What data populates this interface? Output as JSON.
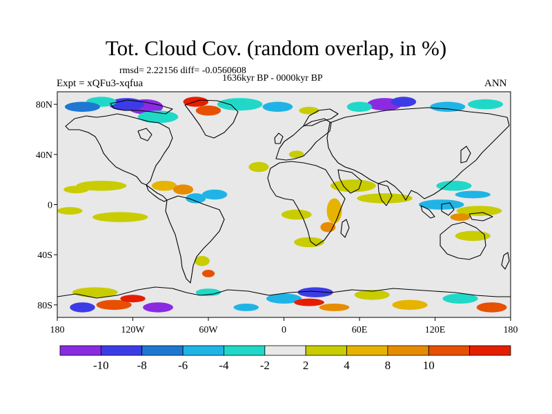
{
  "title": "Tot. Cloud Cov. (random overlap, in %)",
  "stats": "rmsd= 2.22156 diff= -0.0560608",
  "period": "1636kyr BP - 0000kyr BP",
  "experiment": "Expt = xQFu3-xqfua",
  "season": "ANN",
  "map": {
    "lon_range": [
      -180,
      180
    ],
    "lat_range": [
      -90,
      90
    ],
    "background_color": "#e8e8e8",
    "coastline_color": "#000000"
  },
  "lat_ticks": [
    {
      "label": "80N",
      "lat": 80
    },
    {
      "label": "40N",
      "lat": 40
    },
    {
      "label": "0",
      "lat": 0
    },
    {
      "label": "40S",
      "lat": -40
    },
    {
      "label": "80S",
      "lat": -80
    }
  ],
  "lon_ticks": [
    {
      "label": "180",
      "lon": -180
    },
    {
      "label": "120W",
      "lon": -120
    },
    {
      "label": "60W",
      "lon": -60
    },
    {
      "label": "0",
      "lon": 0
    },
    {
      "label": "60E",
      "lon": 60
    },
    {
      "label": "120E",
      "lon": 120
    },
    {
      "label": "180",
      "lon": 180
    }
  ],
  "colorbar": {
    "colors": [
      "#8a2be2",
      "#3c3ce6",
      "#1e78d2",
      "#20b4e6",
      "#20d8c8",
      "#e8e8e8",
      "#c8cc00",
      "#e6b400",
      "#e68c00",
      "#e65000",
      "#e61e00"
    ],
    "labels": [
      "-10",
      "-8",
      "-6",
      "-4",
      "-2",
      "2",
      "4",
      "8",
      "10"
    ]
  },
  "anomalies": [
    {
      "lon": -110,
      "lat": 78,
      "rx": 14,
      "ry": 6,
      "c": 0
    },
    {
      "lon": -125,
      "lat": 80,
      "rx": 14,
      "ry": 5,
      "c": 1
    },
    {
      "lon": -100,
      "lat": 70,
      "rx": 16,
      "ry": 5,
      "c": 4
    },
    {
      "lon": -145,
      "lat": 82,
      "rx": 12,
      "ry": 4,
      "c": 4
    },
    {
      "lon": -160,
      "lat": 78,
      "rx": 14,
      "ry": 4,
      "c": 2
    },
    {
      "lon": -70,
      "lat": 82,
      "rx": 10,
      "ry": 4,
      "c": 10
    },
    {
      "lon": -60,
      "lat": 75,
      "rx": 10,
      "ry": 4,
      "c": 9
    },
    {
      "lon": -35,
      "lat": 80,
      "rx": 18,
      "ry": 5,
      "c": 4
    },
    {
      "lon": -5,
      "lat": 78,
      "rx": 12,
      "ry": 4,
      "c": 3
    },
    {
      "lon": 80,
      "lat": 80,
      "rx": 14,
      "ry": 5,
      "c": 0
    },
    {
      "lon": 95,
      "lat": 82,
      "rx": 10,
      "ry": 4,
      "c": 1
    },
    {
      "lon": 60,
      "lat": 78,
      "rx": 10,
      "ry": 4,
      "c": 4
    },
    {
      "lon": 130,
      "lat": 78,
      "rx": 14,
      "ry": 4,
      "c": 3
    },
    {
      "lon": 160,
      "lat": 80,
      "rx": 14,
      "ry": 4,
      "c": 4
    },
    {
      "lon": 20,
      "lat": 75,
      "rx": 8,
      "ry": 3,
      "c": 6
    },
    {
      "lon": -145,
      "lat": 15,
      "rx": 20,
      "ry": 4,
      "c": 6
    },
    {
      "lon": -165,
      "lat": 12,
      "rx": 10,
      "ry": 3,
      "c": 6
    },
    {
      "lon": -95,
      "lat": 15,
      "rx": 10,
      "ry": 4,
      "c": 7
    },
    {
      "lon": -80,
      "lat": 12,
      "rx": 8,
      "ry": 4,
      "c": 8
    },
    {
      "lon": -55,
      "lat": 8,
      "rx": 10,
      "ry": 4,
      "c": 3
    },
    {
      "lon": -20,
      "lat": 30,
      "rx": 8,
      "ry": 4,
      "c": 6
    },
    {
      "lon": 10,
      "lat": 40,
      "rx": 6,
      "ry": 3,
      "c": 6
    },
    {
      "lon": 55,
      "lat": 15,
      "rx": 18,
      "ry": 5,
      "c": 6
    },
    {
      "lon": 80,
      "lat": 5,
      "rx": 22,
      "ry": 4,
      "c": 6
    },
    {
      "lon": 40,
      "lat": -5,
      "rx": 6,
      "ry": 10,
      "c": 7
    },
    {
      "lon": 35,
      "lat": -18,
      "rx": 6,
      "ry": 4,
      "c": 8
    },
    {
      "lon": 10,
      "lat": -8,
      "rx": 12,
      "ry": 4,
      "c": 6
    },
    {
      "lon": 20,
      "lat": -30,
      "rx": 12,
      "ry": 4,
      "c": 6
    },
    {
      "lon": -130,
      "lat": -10,
      "rx": 22,
      "ry": 4,
      "c": 6
    },
    {
      "lon": -70,
      "lat": 5,
      "rx": 8,
      "ry": 4,
      "c": 3
    },
    {
      "lon": 135,
      "lat": 15,
      "rx": 14,
      "ry": 4,
      "c": 4
    },
    {
      "lon": 150,
      "lat": 8,
      "rx": 14,
      "ry": 3,
      "c": 3
    },
    {
      "lon": 125,
      "lat": 0,
      "rx": 18,
      "ry": 4,
      "c": 3
    },
    {
      "lon": 155,
      "lat": -5,
      "rx": 18,
      "ry": 4,
      "c": 6
    },
    {
      "lon": 140,
      "lat": -10,
      "rx": 8,
      "ry": 3,
      "c": 8
    },
    {
      "lon": 150,
      "lat": -25,
      "rx": 14,
      "ry": 4,
      "c": 6
    },
    {
      "lon": -170,
      "lat": -5,
      "rx": 10,
      "ry": 3,
      "c": 6
    },
    {
      "lon": -65,
      "lat": -45,
      "rx": 6,
      "ry": 4,
      "c": 6
    },
    {
      "lon": -60,
      "lat": -55,
      "rx": 5,
      "ry": 3,
      "c": 9
    },
    {
      "lon": -150,
      "lat": -70,
      "rx": 18,
      "ry": 4,
      "c": 6
    },
    {
      "lon": -135,
      "lat": -80,
      "rx": 14,
      "ry": 4,
      "c": 9
    },
    {
      "lon": -120,
      "lat": -75,
      "rx": 10,
      "ry": 3,
      "c": 10
    },
    {
      "lon": -100,
      "lat": -82,
      "rx": 12,
      "ry": 4,
      "c": 0
    },
    {
      "lon": -160,
      "lat": -82,
      "rx": 10,
      "ry": 4,
      "c": 1
    },
    {
      "lon": -60,
      "lat": -70,
      "rx": 10,
      "ry": 3,
      "c": 4
    },
    {
      "lon": 0,
      "lat": -75,
      "rx": 14,
      "ry": 4,
      "c": 3
    },
    {
      "lon": 25,
      "lat": -70,
      "rx": 14,
      "ry": 4,
      "c": 1
    },
    {
      "lon": 20,
      "lat": -78,
      "rx": 12,
      "ry": 3,
      "c": 10
    },
    {
      "lon": 40,
      "lat": -82,
      "rx": 12,
      "ry": 3,
      "c": 8
    },
    {
      "lon": 70,
      "lat": -72,
      "rx": 14,
      "ry": 4,
      "c": 6
    },
    {
      "lon": 100,
      "lat": -80,
      "rx": 14,
      "ry": 4,
      "c": 7
    },
    {
      "lon": 140,
      "lat": -75,
      "rx": 14,
      "ry": 4,
      "c": 4
    },
    {
      "lon": 165,
      "lat": -82,
      "rx": 12,
      "ry": 4,
      "c": 9
    },
    {
      "lon": -30,
      "lat": -82,
      "rx": 10,
      "ry": 3,
      "c": 3
    }
  ]
}
